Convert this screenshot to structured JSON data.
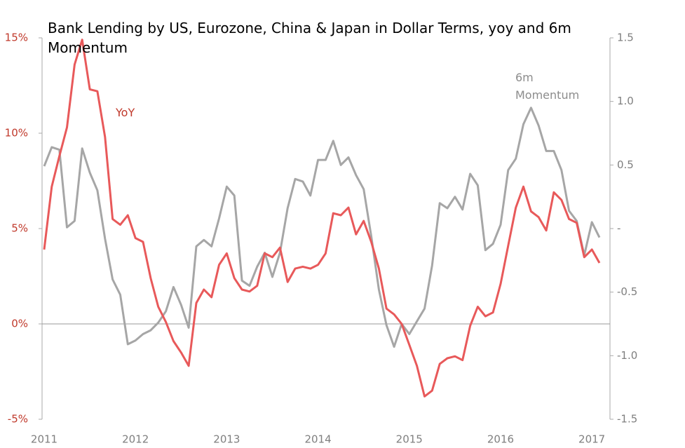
{
  "chart_data": {
    "type": "line",
    "title": "Bank Lending by US, Eurozone, China & Japan in Dollar Terms, yoy and 6m Momentum",
    "categories": [
      "2011",
      null,
      null,
      null,
      null,
      null,
      null,
      null,
      null,
      null,
      null,
      null,
      "2012",
      null,
      null,
      null,
      null,
      null,
      null,
      null,
      null,
      null,
      null,
      null,
      "2013",
      null,
      null,
      null,
      null,
      null,
      null,
      null,
      null,
      null,
      null,
      null,
      "2014",
      null,
      null,
      null,
      null,
      null,
      null,
      null,
      null,
      null,
      null,
      null,
      "2015",
      null,
      null,
      null,
      null,
      null,
      null,
      null,
      null,
      null,
      null,
      null,
      "2016",
      null,
      null,
      null,
      null,
      null,
      null,
      null,
      null,
      null,
      null,
      null,
      "2017",
      null
    ],
    "series": [
      {
        "name": "YoY",
        "color": "#e8595a",
        "values": [
          3.9,
          7.2,
          8.8,
          10.3,
          13.6,
          14.9,
          12.3,
          12.2,
          9.8,
          5.5,
          5.2,
          5.7,
          4.5,
          4.3,
          2.4,
          0.9,
          0.1,
          -0.9,
          -1.5,
          -2.2,
          1.1,
          1.8,
          1.4,
          3.1,
          3.7,
          2.4,
          1.8,
          1.7,
          2.0,
          3.7,
          3.5,
          4.0,
          2.2,
          2.9,
          3.0,
          2.9,
          3.1,
          3.7,
          5.8,
          5.7,
          6.1,
          4.7,
          5.4,
          4.3,
          2.9,
          0.8,
          0.5,
          0.0,
          -1.1,
          -2.2,
          -3.8,
          -3.5,
          -2.1,
          -1.8,
          -1.7,
          -1.9,
          -0.1,
          0.9,
          0.4,
          0.6,
          2.1,
          4.1,
          6.1,
          7.2,
          5.9,
          5.6,
          4.9,
          6.9,
          6.5,
          5.5,
          5.3,
          3.5,
          3.9,
          3.2
        ]
      },
      {
        "name": "6m Momentum",
        "color": "#a6a6a6",
        "axis": "y2",
        "values": [
          0.49,
          0.64,
          0.62,
          0.01,
          0.06,
          0.63,
          0.44,
          0.3,
          -0.08,
          -0.4,
          -0.52,
          -0.91,
          -0.88,
          -0.83,
          -0.8,
          -0.74,
          -0.65,
          -0.46,
          -0.6,
          -0.78,
          -0.14,
          -0.09,
          -0.14,
          0.08,
          0.33,
          0.26,
          -0.41,
          -0.45,
          -0.3,
          -0.19,
          -0.38,
          -0.19,
          0.16,
          0.39,
          0.37,
          0.26,
          0.54,
          0.54,
          0.69,
          0.5,
          0.56,
          0.42,
          0.31,
          -0.06,
          -0.48,
          -0.76,
          -0.93,
          -0.75,
          -0.83,
          -0.73,
          -0.63,
          -0.29,
          0.2,
          0.16,
          0.25,
          0.15,
          0.43,
          0.34,
          -0.17,
          -0.12,
          0.03,
          0.46,
          0.55,
          0.82,
          0.95,
          0.81,
          0.61,
          0.61,
          0.46,
          0.14,
          0.06,
          -0.21,
          0.05,
          -0.07
        ]
      }
    ],
    "ylim": [
      -5,
      15
    ],
    "yticks": [
      {
        "value": -5,
        "label": "-5%"
      },
      {
        "value": 0,
        "label": "0%"
      },
      {
        "value": 5,
        "label": "5%"
      },
      {
        "value": 10,
        "label": "10%"
      },
      {
        "value": 15,
        "label": "15%"
      }
    ],
    "y2lim": [
      -1.5,
      1.5
    ],
    "y2ticks": [
      -1.5,
      {
        "value": -1,
        "label": "-1.0"
      },
      -0.5,
      {
        "value": 0,
        "label": "-"
      },
      0.5,
      {
        "value": 1,
        "label": "1.0"
      },
      1.5
    ],
    "ytick_color": "#c0392b",
    "y2tick_color": "#7f7f7f"
  }
}
